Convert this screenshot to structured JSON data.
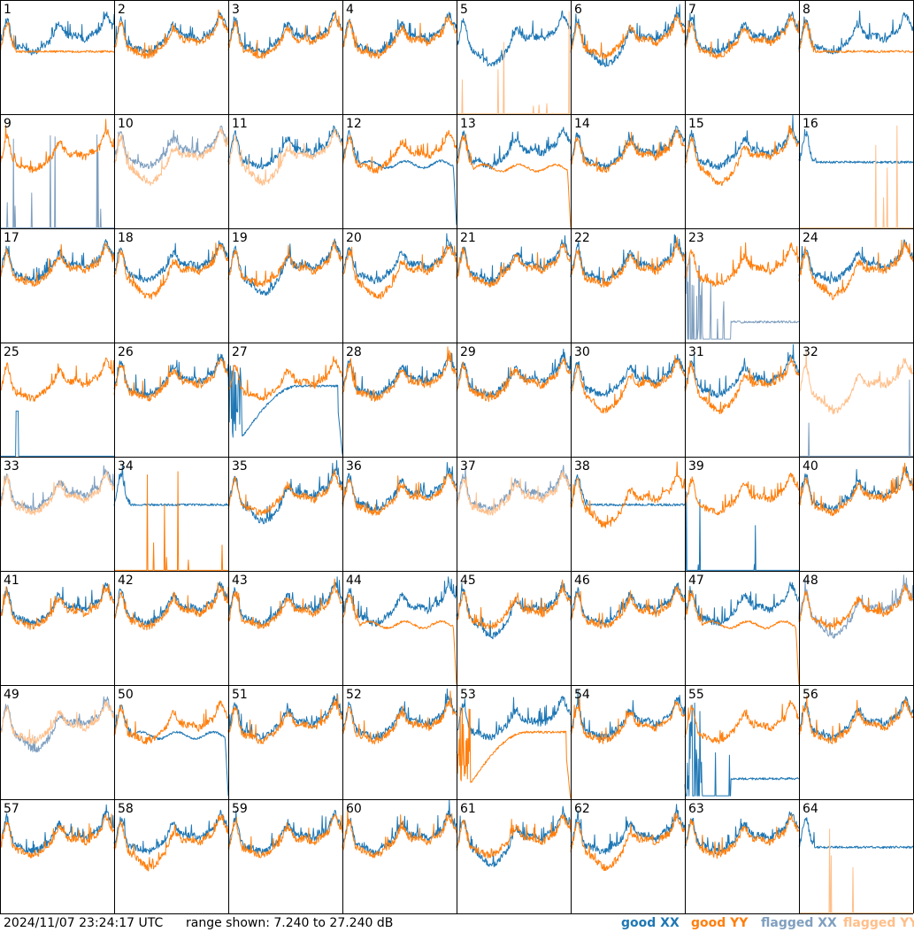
{
  "footer": {
    "timestamp": "2024/11/07 23:24:17 UTC",
    "range_text": "range shown: 7.240 to 27.240 dB",
    "legend": [
      {
        "id": "good-xx",
        "word": "good",
        "pol": "XX",
        "color": "#1f77b4"
      },
      {
        "id": "good-yy",
        "word": "good",
        "pol": "YY",
        "color": "#ff7f0e"
      },
      {
        "id": "flagged-xx",
        "word": "flagged",
        "pol": "XX",
        "color": "#7f9fbf"
      },
      {
        "id": "flagged-yy",
        "word": "flagged",
        "pol": "YY",
        "color": "#ffbf8a"
      }
    ]
  },
  "chart_data": {
    "type": "line",
    "grid": {
      "rows": 8,
      "cols": 8
    },
    "ylim": [
      7.24,
      27.24
    ],
    "yunit": "dB",
    "colors": {
      "good_xx": "#1f77b4",
      "good_yy": "#ff7f0e",
      "flagged_xx": "#7f9fbf",
      "flagged_yy": "#ffbf8a"
    },
    "panels": [
      {
        "label": "1",
        "xx": "good",
        "yy": "good",
        "xx_shape": "normal",
        "yy_shape": "flat",
        "noise": 0.3
      },
      {
        "label": "2",
        "xx": "good",
        "yy": "good",
        "xx_shape": "normal",
        "yy_shape": "normal",
        "noise": 0.3
      },
      {
        "label": "3",
        "xx": "good",
        "yy": "good",
        "xx_shape": "normal",
        "yy_shape": "normal",
        "noise": 0.3
      },
      {
        "label": "4",
        "xx": "good",
        "yy": "good",
        "xx_shape": "normal",
        "yy_shape": "normal",
        "noise": 0.3
      },
      {
        "label": "5",
        "xx": "good",
        "yy": "flagged",
        "xx_shape": "deep",
        "yy_shape": "spikes",
        "noise": 0.4
      },
      {
        "label": "6",
        "xx": "good",
        "yy": "good",
        "xx_shape": "deep",
        "yy_shape": "normal",
        "noise": 0.4
      },
      {
        "label": "7",
        "xx": "good",
        "yy": "good",
        "xx_shape": "normal",
        "yy_shape": "normal",
        "noise": 0.3
      },
      {
        "label": "8",
        "xx": "good",
        "yy": "good",
        "xx_shape": "normal",
        "yy_shape": "flat",
        "noise": 0.3
      },
      {
        "label": "9",
        "xx": "flagged",
        "yy": "good",
        "xx_shape": "spikes",
        "yy_shape": "normal",
        "noise": 0.3
      },
      {
        "label": "10",
        "xx": "flagged",
        "yy": "flagged",
        "xx_shape": "normal",
        "yy_shape": "deep",
        "noise": 0.3
      },
      {
        "label": "11",
        "xx": "good",
        "yy": "flagged",
        "xx_shape": "normal",
        "yy_shape": "deep",
        "noise": 0.35
      },
      {
        "label": "12",
        "xx": "good",
        "yy": "good",
        "xx_shape": "drop",
        "yy_shape": "normal",
        "noise": 0.35
      },
      {
        "label": "13",
        "xx": "good",
        "yy": "good",
        "xx_shape": "normal",
        "yy_shape": "drop",
        "noise": 0.35
      },
      {
        "label": "14",
        "xx": "good",
        "yy": "good",
        "xx_shape": "normal",
        "yy_shape": "normal",
        "noise": 0.3
      },
      {
        "label": "15",
        "xx": "good",
        "yy": "good",
        "xx_shape": "normal",
        "yy_shape": "deep",
        "noise": 0.3
      },
      {
        "label": "16",
        "xx": "good",
        "yy": "flagged",
        "xx_shape": "flat",
        "yy_shape": "spikes",
        "noise": 0.3
      },
      {
        "label": "17",
        "xx": "good",
        "yy": "good",
        "xx_shape": "normal",
        "yy_shape": "normal",
        "noise": 0.3
      },
      {
        "label": "18",
        "xx": "good",
        "yy": "good",
        "xx_shape": "normal",
        "yy_shape": "deep",
        "noise": 0.3
      },
      {
        "label": "19",
        "xx": "good",
        "yy": "good",
        "xx_shape": "deep",
        "yy_shape": "normal",
        "noise": 0.3
      },
      {
        "label": "20",
        "xx": "good",
        "yy": "good",
        "xx_shape": "normal",
        "yy_shape": "deep",
        "noise": 0.35
      },
      {
        "label": "21",
        "xx": "good",
        "yy": "good",
        "xx_shape": "normal",
        "yy_shape": "normal",
        "noise": 0.3
      },
      {
        "label": "22",
        "xx": "good",
        "yy": "good",
        "xx_shape": "normal",
        "yy_shape": "normal",
        "noise": 0.3
      },
      {
        "label": "23",
        "xx": "flagged",
        "yy": "good",
        "xx_shape": "lowspikes",
        "yy_shape": "normal",
        "noise": 0.35
      },
      {
        "label": "24",
        "xx": "good",
        "yy": "good",
        "xx_shape": "normal",
        "yy_shape": "deep",
        "noise": 0.35
      },
      {
        "label": "25",
        "xx": "good",
        "yy": "good",
        "xx_shape": "spike1",
        "yy_shape": "normal",
        "noise": 0.3
      },
      {
        "label": "26",
        "xx": "good",
        "yy": "good",
        "xx_shape": "normal",
        "yy_shape": "normal",
        "noise": 0.3
      },
      {
        "label": "27",
        "xx": "good",
        "yy": "good",
        "xx_shape": "hump",
        "yy_shape": "normal",
        "noise": 0.35
      },
      {
        "label": "28",
        "xx": "good",
        "yy": "good",
        "xx_shape": "normal",
        "yy_shape": "normal",
        "noise": 0.3
      },
      {
        "label": "29",
        "xx": "good",
        "yy": "good",
        "xx_shape": "normal",
        "yy_shape": "normal",
        "noise": 0.3
      },
      {
        "label": "30",
        "xx": "good",
        "yy": "good",
        "xx_shape": "normal",
        "yy_shape": "deep",
        "noise": 0.3
      },
      {
        "label": "31",
        "xx": "good",
        "yy": "good",
        "xx_shape": "normal",
        "yy_shape": "deep",
        "noise": 0.35
      },
      {
        "label": "32",
        "xx": "flagged",
        "yy": "flagged",
        "xx_shape": "spikes",
        "yy_shape": "deep",
        "noise": 0.4
      },
      {
        "label": "33",
        "xx": "flagged",
        "yy": "flagged",
        "xx_shape": "normal",
        "yy_shape": "normal",
        "noise": 0.3
      },
      {
        "label": "34",
        "xx": "good",
        "yy": "good",
        "xx_shape": "flat",
        "yy_shape": "spikes",
        "noise": 0.3
      },
      {
        "label": "35",
        "xx": "good",
        "yy": "good",
        "xx_shape": "deep",
        "yy_shape": "normal",
        "noise": 0.35
      },
      {
        "label": "36",
        "xx": "good",
        "yy": "good",
        "xx_shape": "normal",
        "yy_shape": "normal",
        "noise": 0.3
      },
      {
        "label": "37",
        "xx": "flagged",
        "yy": "flagged",
        "xx_shape": "normal",
        "yy_shape": "normal",
        "noise": 0.3
      },
      {
        "label": "38",
        "xx": "good",
        "yy": "good",
        "xx_shape": "flat",
        "yy_shape": "deep",
        "noise": 0.35
      },
      {
        "label": "39",
        "xx": "good",
        "yy": "good",
        "xx_shape": "spikes",
        "yy_shape": "normal",
        "noise": 0.3
      },
      {
        "label": "40",
        "xx": "good",
        "yy": "good",
        "xx_shape": "normal",
        "yy_shape": "normal",
        "noise": 0.3
      },
      {
        "label": "41",
        "xx": "good",
        "yy": "good",
        "xx_shape": "normal",
        "yy_shape": "normal",
        "noise": 0.3
      },
      {
        "label": "42",
        "xx": "good",
        "yy": "good",
        "xx_shape": "normal",
        "yy_shape": "normal",
        "noise": 0.3
      },
      {
        "label": "43",
        "xx": "good",
        "yy": "good",
        "xx_shape": "normal",
        "yy_shape": "normal",
        "noise": 0.3
      },
      {
        "label": "44",
        "xx": "good",
        "yy": "good",
        "xx_shape": "normal",
        "yy_shape": "drop",
        "noise": 0.35
      },
      {
        "label": "45",
        "xx": "good",
        "yy": "good",
        "xx_shape": "deep",
        "yy_shape": "normal",
        "noise": 0.4
      },
      {
        "label": "46",
        "xx": "good",
        "yy": "good",
        "xx_shape": "normal",
        "yy_shape": "normal",
        "noise": 0.3
      },
      {
        "label": "47",
        "xx": "good",
        "yy": "good",
        "xx_shape": "normal",
        "yy_shape": "drop",
        "noise": 0.35
      },
      {
        "label": "48",
        "xx": "flagged",
        "yy": "good",
        "xx_shape": "deep",
        "yy_shape": "normal",
        "noise": 0.3
      },
      {
        "label": "49",
        "xx": "flagged",
        "yy": "flagged",
        "xx_shape": "deep",
        "yy_shape": "normal",
        "noise": 0.3
      },
      {
        "label": "50",
        "xx": "good",
        "yy": "good",
        "xx_shape": "drop",
        "yy_shape": "normal",
        "noise": 0.35
      },
      {
        "label": "51",
        "xx": "good",
        "yy": "good",
        "xx_shape": "normal",
        "yy_shape": "normal",
        "noise": 0.3
      },
      {
        "label": "52",
        "xx": "good",
        "yy": "good",
        "xx_shape": "normal",
        "yy_shape": "normal",
        "noise": 0.3
      },
      {
        "label": "53",
        "xx": "good",
        "yy": "good",
        "xx_shape": "normal",
        "yy_shape": "hump",
        "noise": 0.4
      },
      {
        "label": "54",
        "xx": "good",
        "yy": "good",
        "xx_shape": "normal",
        "yy_shape": "normal",
        "noise": 0.3
      },
      {
        "label": "55",
        "xx": "good",
        "yy": "good",
        "xx_shape": "lowspikes",
        "yy_shape": "normal",
        "noise": 0.35
      },
      {
        "label": "56",
        "xx": "good",
        "yy": "good",
        "xx_shape": "normal",
        "yy_shape": "normal",
        "noise": 0.3
      },
      {
        "label": "57",
        "xx": "good",
        "yy": "good",
        "xx_shape": "normal",
        "yy_shape": "normal",
        "noise": 0.3
      },
      {
        "label": "58",
        "xx": "good",
        "yy": "good",
        "xx_shape": "normal",
        "yy_shape": "deep",
        "noise": 0.3
      },
      {
        "label": "59",
        "xx": "good",
        "yy": "good",
        "xx_shape": "normal",
        "yy_shape": "normal",
        "noise": 0.3
      },
      {
        "label": "60",
        "xx": "good",
        "yy": "good",
        "xx_shape": "normal",
        "yy_shape": "normal",
        "noise": 0.3
      },
      {
        "label": "61",
        "xx": "good",
        "yy": "good",
        "xx_shape": "deep",
        "yy_shape": "normal",
        "noise": 0.35
      },
      {
        "label": "62",
        "xx": "good",
        "yy": "good",
        "xx_shape": "normal",
        "yy_shape": "deep",
        "noise": 0.4
      },
      {
        "label": "63",
        "xx": "good",
        "yy": "good",
        "xx_shape": "normal",
        "yy_shape": "normal",
        "noise": 0.3
      },
      {
        "label": "64",
        "xx": "good",
        "yy": "flagged",
        "xx_shape": "flat",
        "yy_shape": "spikes",
        "noise": 0.3
      }
    ]
  }
}
